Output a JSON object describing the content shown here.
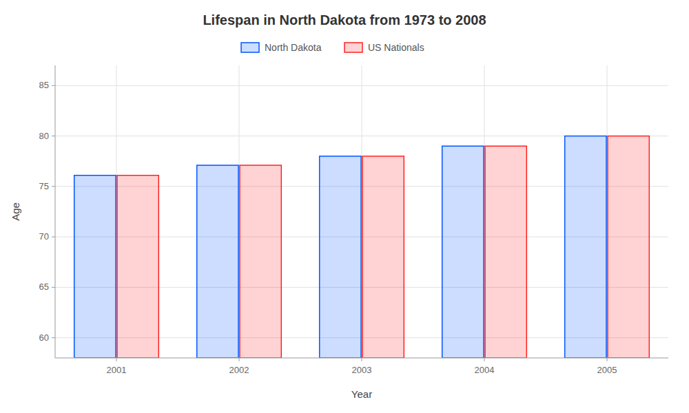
{
  "chart_data": {
    "type": "bar",
    "title": "Lifespan in North Dakota from 1973 to 2008",
    "x_label": "Year",
    "y_label": "Age",
    "categories": [
      "2001",
      "2002",
      "2003",
      "2004",
      "2005"
    ],
    "series": [
      {
        "name": "North Dakota",
        "color": "#0055FF",
        "values": [
          76.1,
          77.1,
          78.0,
          79.0,
          80.0
        ]
      },
      {
        "name": "US Nationals",
        "color": "#FF2222",
        "values": [
          76.1,
          77.1,
          78.0,
          79.0,
          80.0
        ]
      }
    ],
    "ylim": [
      58,
      87
    ],
    "yticks": [
      60,
      65,
      70,
      75,
      80,
      85
    ],
    "grid": true,
    "legend": "top"
  }
}
